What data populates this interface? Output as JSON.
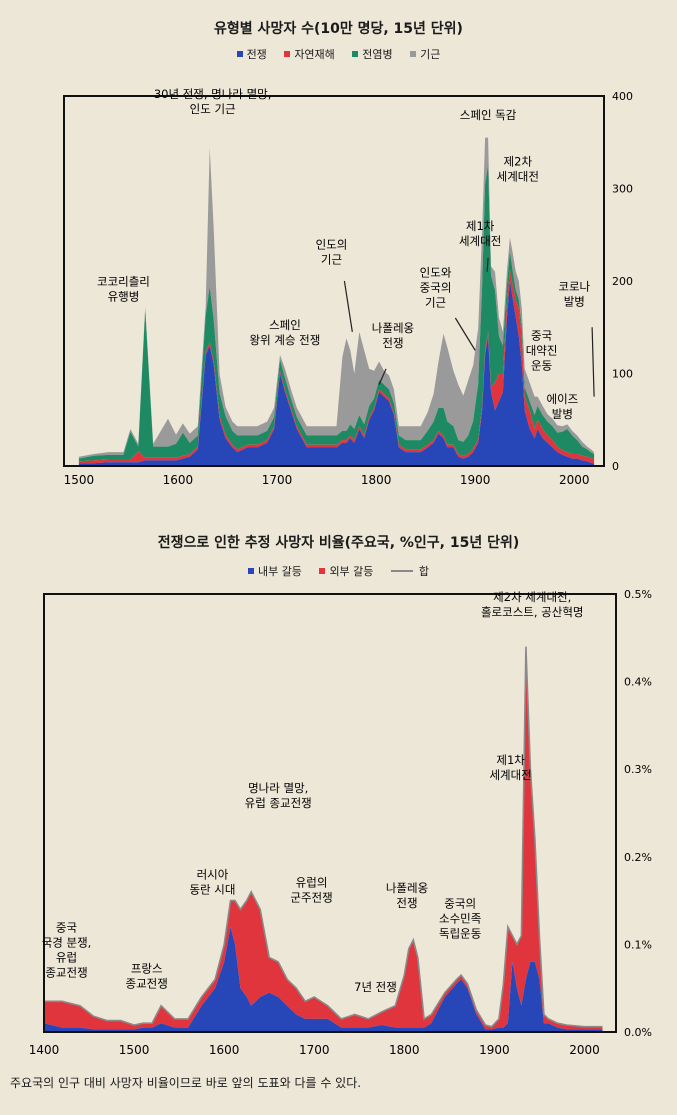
{
  "colors": {
    "war": "#2746b8",
    "natural_disaster": "#e0353d",
    "epidemic": "#1e8a63",
    "famine": "#9a9a9a",
    "total_line": "#8a8a8a",
    "frame": "#111111"
  },
  "chart_data": [
    {
      "type": "area",
      "stacked": true,
      "title": "유형별 사망자 수(10만 명당, 15년 단위)",
      "xlabel": "",
      "ylabel": "",
      "xlim": [
        1485,
        2030
      ],
      "ylim": [
        0,
        400
      ],
      "x_ticks": [
        1500,
        1600,
        1700,
        1800,
        1900,
        2000
      ],
      "y_ticks": [
        0,
        100,
        200,
        300,
        400
      ],
      "legend_position": "top",
      "x": [
        1500,
        1515,
        1530,
        1545,
        1552,
        1560,
        1567,
        1575,
        1590,
        1598,
        1605,
        1612,
        1620,
        1628,
        1632,
        1636,
        1642,
        1648,
        1655,
        1660,
        1670,
        1680,
        1690,
        1697,
        1703,
        1708,
        1714,
        1720,
        1730,
        1745,
        1752,
        1760,
        1766,
        1770,
        1774,
        1778,
        1783,
        1788,
        1793,
        1798,
        1803,
        1808,
        1813,
        1818,
        1823,
        1830,
        1845,
        1852,
        1858,
        1863,
        1868,
        1872,
        1878,
        1883,
        1888,
        1893,
        1898,
        1903,
        1907,
        1910,
        1913,
        1916,
        1920,
        1924,
        1928,
        1932,
        1935,
        1938,
        1941,
        1944,
        1947,
        1950,
        1955,
        1960,
        1963,
        1968,
        1973,
        1978,
        1983,
        1988,
        1993,
        1998,
        2003,
        2008,
        2013,
        2018,
        2020
      ],
      "series": [
        {
          "name": "전쟁",
          "values": [
            3,
            3,
            4,
            4,
            4,
            4,
            6,
            6,
            6,
            6,
            8,
            10,
            18,
            120,
            130,
            110,
            50,
            30,
            20,
            15,
            20,
            20,
            25,
            40,
            100,
            80,
            60,
            40,
            20,
            20,
            20,
            20,
            25,
            25,
            30,
            25,
            40,
            30,
            50,
            60,
            80,
            75,
            70,
            55,
            20,
            15,
            15,
            20,
            25,
            35,
            30,
            20,
            20,
            10,
            8,
            10,
            15,
            25,
            60,
            120,
            140,
            80,
            60,
            70,
            80,
            160,
            200,
            180,
            160,
            140,
            110,
            60,
            40,
            30,
            40,
            30,
            25,
            20,
            15,
            12,
            10,
            8,
            8,
            6,
            5,
            3,
            3
          ]
        },
        {
          "name": "자연재해",
          "values": [
            2,
            3,
            3,
            3,
            3,
            12,
            3,
            3,
            3,
            3,
            3,
            3,
            3,
            3,
            4,
            4,
            4,
            4,
            3,
            3,
            3,
            3,
            3,
            3,
            3,
            3,
            3,
            3,
            3,
            3,
            3,
            3,
            3,
            3,
            3,
            3,
            3,
            3,
            3,
            3,
            3,
            3,
            3,
            3,
            3,
            3,
            3,
            3,
            3,
            3,
            3,
            3,
            3,
            3,
            3,
            3,
            4,
            4,
            4,
            5,
            5,
            6,
            30,
            30,
            20,
            15,
            12,
            15,
            20,
            30,
            30,
            15,
            20,
            10,
            10,
            10,
            8,
            8,
            6,
            5,
            5,
            5,
            5,
            5,
            5,
            5,
            5
          ]
        },
        {
          "name": "전염병",
          "values": [
            3,
            5,
            5,
            5,
            30,
            5,
            160,
            12,
            12,
            15,
            25,
            12,
            12,
            40,
            60,
            45,
            25,
            20,
            15,
            15,
            10,
            10,
            10,
            10,
            12,
            12,
            10,
            10,
            10,
            10,
            10,
            10,
            10,
            10,
            12,
            12,
            12,
            12,
            12,
            10,
            10,
            10,
            10,
            10,
            10,
            10,
            10,
            15,
            20,
            25,
            30,
            25,
            20,
            15,
            15,
            20,
            30,
            60,
            130,
            180,
            180,
            120,
            100,
            40,
            30,
            20,
            20,
            15,
            10,
            10,
            10,
            10,
            10,
            15,
            15,
            15,
            15,
            15,
            15,
            20,
            25,
            20,
            15,
            10,
            8,
            6,
            5
          ]
        },
        {
          "name": "기근",
          "values": [
            2,
            2,
            3,
            3,
            3,
            3,
            3,
            3,
            30,
            10,
            10,
            10,
            10,
            10,
            150,
            100,
            20,
            10,
            10,
            10,
            10,
            10,
            10,
            10,
            5,
            10,
            10,
            10,
            10,
            10,
            10,
            10,
            80,
            100,
            80,
            60,
            90,
            80,
            40,
            30,
            20,
            15,
            15,
            15,
            10,
            15,
            15,
            20,
            30,
            50,
            80,
            80,
            60,
            60,
            50,
            60,
            60,
            60,
            60,
            50,
            30,
            10,
            20,
            20,
            15,
            15,
            15,
            20,
            20,
            20,
            20,
            20,
            20,
            20,
            10,
            10,
            8,
            8,
            8,
            6,
            5,
            5,
            5,
            5,
            3,
            3,
            2
          ]
        }
      ],
      "annotations": [
        "코코리츨리 유행병",
        "30년 전쟁, 명나라 멸망, 인도 기근",
        "스페인 왕위 계승 전쟁",
        "인도의 기근",
        "나폴레옹 전쟁",
        "인도와 중국의 기근",
        "제1차 세계대전",
        "스페인 독감",
        "제2차 세계대전",
        "중국 대약진 운동",
        "코로나 발병",
        "에이즈 발병"
      ]
    },
    {
      "type": "area",
      "stacked": true,
      "title": "전쟁으로 인한 추정 사망자 비율(주요국, %인구, 15년 단위)",
      "xlabel": "",
      "ylabel": "",
      "xlim": [
        1400,
        2035
      ],
      "ylim": [
        0,
        0.5
      ],
      "x_ticks": [
        1400,
        1500,
        1600,
        1700,
        1800,
        1900,
        2000
      ],
      "y_ticks": [
        0,
        0.1,
        0.2,
        0.3,
        0.4,
        0.5
      ],
      "y_tick_labels": [
        "0.0%",
        "0.1%",
        "0.2%",
        "0.3%",
        "0.4%",
        "0.5%"
      ],
      "legend_position": "top",
      "x": [
        1400,
        1420,
        1440,
        1455,
        1470,
        1485,
        1500,
        1510,
        1520,
        1530,
        1545,
        1560,
        1575,
        1590,
        1600,
        1607,
        1612,
        1618,
        1625,
        1630,
        1640,
        1650,
        1660,
        1670,
        1680,
        1690,
        1700,
        1715,
        1730,
        1745,
        1760,
        1775,
        1790,
        1800,
        1805,
        1810,
        1815,
        1822,
        1830,
        1845,
        1858,
        1863,
        1870,
        1880,
        1890,
        1897,
        1905,
        1910,
        1915,
        1920,
        1925,
        1930,
        1935,
        1940,
        1945,
        1950,
        1955,
        1960,
        1970,
        1980,
        2000,
        2020
      ],
      "series": [
        {
          "name": "내부 갈등",
          "values": [
            0.01,
            0.005,
            0.005,
            0.003,
            0.003,
            0.003,
            0.003,
            0.005,
            0.005,
            0.01,
            0.005,
            0.005,
            0.03,
            0.05,
            0.08,
            0.12,
            0.1,
            0.05,
            0.04,
            0.03,
            0.04,
            0.045,
            0.04,
            0.03,
            0.02,
            0.015,
            0.015,
            0.015,
            0.005,
            0.005,
            0.005,
            0.008,
            0.005,
            0.005,
            0.005,
            0.005,
            0.005,
            0.005,
            0.01,
            0.04,
            0.055,
            0.06,
            0.05,
            0.02,
            0.003,
            0.003,
            0.005,
            0.005,
            0.01,
            0.08,
            0.05,
            0.03,
            0.06,
            0.08,
            0.08,
            0.06,
            0.01,
            0.01,
            0.005,
            0.003,
            0.003,
            0.003
          ]
        },
        {
          "name": "외부 갈등",
          "values": [
            0.025,
            0.03,
            0.025,
            0.015,
            0.01,
            0.01,
            0.005,
            0.005,
            0.005,
            0.02,
            0.01,
            0.01,
            0.01,
            0.01,
            0.02,
            0.03,
            0.05,
            0.09,
            0.11,
            0.13,
            0.1,
            0.04,
            0.04,
            0.03,
            0.03,
            0.02,
            0.025,
            0.015,
            0.01,
            0.015,
            0.01,
            0.015,
            0.025,
            0.06,
            0.09,
            0.1,
            0.08,
            0.01,
            0.01,
            0.005,
            0.005,
            0.005,
            0.005,
            0.005,
            0.005,
            0.003,
            0.01,
            0.05,
            0.11,
            0.03,
            0.05,
            0.08,
            0.38,
            0.22,
            0.14,
            0.05,
            0.01,
            0.005,
            0.005,
            0.005,
            0.003,
            0.003
          ]
        }
      ],
      "annotations": [
        "중국 국경 분쟁, 유럽 종교전쟁",
        "프랑스 종교전쟁",
        "러시아 동란 시대",
        "명나라 멸망, 유럽 종교전쟁",
        "유럽의 군주전쟁",
        "7년 전쟁",
        "나폴레옹 전쟁",
        "중국의 소수민족 독립운동",
        "제1차 세계대전",
        "제2차 세계대전, 홀로코스트, 공산혁명"
      ]
    }
  ],
  "legend1": {
    "war": "전쟁",
    "natural_disaster": "자연재해",
    "epidemic": "전염병",
    "famine": "기근"
  },
  "legend2": {
    "internal": "내부 갈등",
    "external": "외부 갈등",
    "total": "합"
  },
  "caption": "주요국의 인구 대비 사망자 비율이므로 바로 앞의 도표와 다를 수 있다."
}
